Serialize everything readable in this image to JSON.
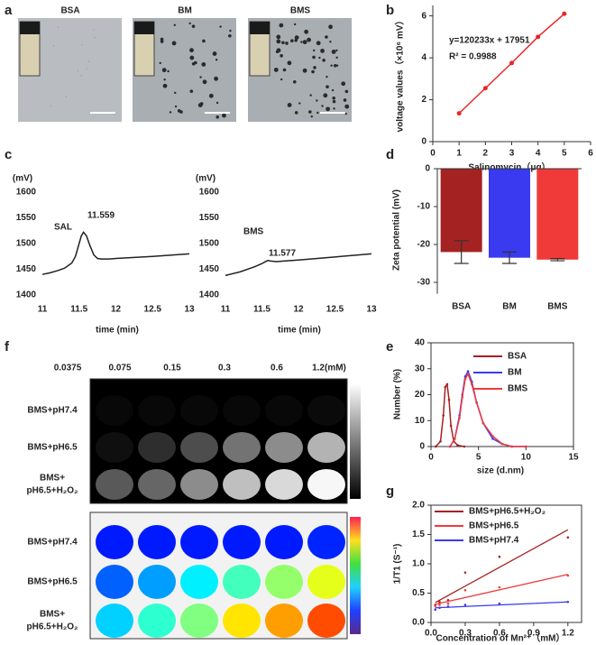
{
  "chart_data": [
    {
      "type": "images",
      "panel": "a",
      "labels": [
        "BSA",
        "BM",
        "BMS"
      ]
    },
    {
      "type": "line",
      "panel": "b",
      "annotations": [
        "y=120233x + 17951",
        "R² = 0.9988"
      ],
      "x_label": "Salinomycin（μg）",
      "y_label": "voltage values（×10⁶ mV）",
      "xlim": [
        0,
        6
      ],
      "xticks": [
        0,
        1,
        2,
        3,
        4,
        5,
        6
      ],
      "ylim": [
        0,
        6.5
      ],
      "yticks": [
        0,
        2,
        4,
        6
      ],
      "series": [
        {
          "color": "#e8262a",
          "x": [
            1,
            2,
            3,
            4,
            5
          ],
          "values": [
            1.35,
            2.55,
            3.75,
            5.0,
            6.1
          ]
        }
      ]
    },
    {
      "type": "line",
      "panel": "c",
      "unit_label": "(mV)",
      "annotations": [
        "SAL",
        "11.559"
      ],
      "x_label": "time (min)",
      "xlim": [
        11,
        13
      ],
      "xticks": [
        11,
        11.5,
        12,
        12.5,
        13
      ],
      "ylim": [
        1400,
        1600
      ],
      "yticks": [
        1400,
        1450,
        1500,
        1550,
        1600
      ],
      "series": [
        {
          "color": "#222222",
          "x": [
            11,
            11.1,
            11.2,
            11.3,
            11.4,
            11.45,
            11.5,
            11.53,
            11.56,
            11.6,
            11.65,
            11.7,
            11.75,
            11.8,
            11.9,
            12,
            12.5,
            13
          ],
          "values": [
            1440,
            1443,
            1447,
            1452,
            1462,
            1475,
            1500,
            1515,
            1522,
            1515,
            1495,
            1478,
            1471,
            1470,
            1470,
            1471,
            1475,
            1480
          ]
        }
      ]
    },
    {
      "type": "line",
      "unit_label": "(mV)",
      "annotations": [
        "BMS",
        "11.577"
      ],
      "x_label": "time (min)",
      "xlim": [
        11,
        13
      ],
      "xticks": [
        11,
        11.5,
        12,
        12.5,
        13
      ],
      "ylim": [
        1400,
        1600
      ],
      "yticks": [
        1400,
        1450,
        1500,
        1550,
        1600
      ],
      "series": [
        {
          "color": "#222222",
          "x": [
            11,
            11.2,
            11.4,
            11.5,
            11.55,
            11.58,
            11.62,
            11.7,
            11.8,
            12,
            12.5,
            13
          ],
          "values": [
            1438,
            1445,
            1455,
            1461,
            1465,
            1467,
            1466,
            1465,
            1466,
            1468,
            1474,
            1480
          ]
        }
      ]
    },
    {
      "type": "bar",
      "panel": "d",
      "y_label": "Zeta potential (mV)",
      "categories": [
        "BSA",
        "BM",
        "BMS"
      ],
      "values": [
        -22,
        -23.5,
        -24
      ],
      "errors": [
        3,
        1.5,
        0.3
      ],
      "colors": [
        "#a52222",
        "#3a3af0",
        "#f03a3a"
      ],
      "ylim": [
        -33,
        0
      ],
      "yticks": [
        0,
        -10,
        -20,
        -30
      ]
    },
    {
      "type": "line",
      "panel": "e",
      "x_label": "size (d.nm)",
      "y_label": "Number (%)",
      "legend": "upper right",
      "xlim": [
        0,
        15
      ],
      "xticks": [
        0,
        5,
        10,
        15
      ],
      "ylim": [
        0,
        40
      ],
      "yticks": [
        0,
        10,
        20,
        30,
        40
      ],
      "series": [
        {
          "name": "BSA",
          "color": "#a52222",
          "x": [
            0.5,
            1,
            1.3,
            1.5,
            1.7,
            1.9,
            2.1,
            2.4,
            2.8,
            3.5
          ],
          "values": [
            0,
            2,
            12,
            23,
            24,
            18,
            8,
            2,
            0.5,
            0
          ]
        },
        {
          "name": "BM",
          "color": "#3a3af0",
          "x": [
            2,
            2.5,
            3,
            3.3,
            3.6,
            3.9,
            4.3,
            4.8,
            5.5,
            6.5,
            7.5,
            8.5,
            10
          ],
          "values": [
            0,
            3,
            12,
            20,
            27,
            29,
            25,
            17,
            9,
            3,
            1,
            0,
            0
          ]
        },
        {
          "name": "BMS",
          "color": "#f03a3a",
          "x": [
            2,
            2.5,
            3,
            3.3,
            3.6,
            3.9,
            4.3,
            4.8,
            5.5,
            6.5,
            7.5,
            8.5,
            10
          ],
          "values": [
            0,
            3,
            11,
            19,
            26,
            28,
            24,
            17,
            9,
            4,
            1,
            0,
            0
          ]
        }
      ]
    },
    {
      "type": "heatmap",
      "panel": "f",
      "colormap": "gray",
      "columns": [
        "0.0375",
        "0.075",
        "0.15",
        "0.3",
        "0.6",
        "1.2(mM)"
      ],
      "row_labels": [
        [
          "BMS+pH7.4"
        ],
        [
          "BMS+pH6.5"
        ],
        [
          "BMS+",
          "pH6.5+H₂O₂"
        ]
      ],
      "values": [
        [
          0.03,
          0.03,
          0.03,
          0.03,
          0.03,
          0.04
        ],
        [
          0.06,
          0.18,
          0.3,
          0.45,
          0.55,
          0.7
        ],
        [
          0.35,
          0.4,
          0.55,
          0.75,
          0.85,
          0.97
        ]
      ]
    },
    {
      "type": "heatmap",
      "colormap": "jet",
      "row_labels": [
        [
          "BMS+pH7.4"
        ],
        [
          "BMS+pH6.5"
        ],
        [
          "BMS+",
          "pH6.5+H₂O₂"
        ]
      ],
      "values": [
        [
          0.15,
          0.15,
          0.15,
          0.15,
          0.15,
          0.16
        ],
        [
          0.22,
          0.28,
          0.36,
          0.44,
          0.52,
          0.6
        ],
        [
          0.33,
          0.42,
          0.5,
          0.65,
          0.72,
          0.8
        ]
      ]
    },
    {
      "type": "scatter",
      "panel": "g",
      "x_label": "Concentration of Mn²⁺（mM）",
      "y_label": "1/T1 (S⁻¹)",
      "legend": "upper left",
      "xlim": [
        0,
        1.32
      ],
      "xticks": [
        {
          "value": 0,
          "label": "0.0"
        },
        {
          "value": 0.3,
          "label": "0.3"
        },
        {
          "value": 0.6,
          "label": "0.6"
        },
        {
          "value": 0.9,
          "label": "0.9"
        },
        {
          "value": 1.2,
          "label": "1.2"
        }
      ],
      "ylim": [
        0,
        2
      ],
      "yticks": [
        {
          "value": 0,
          "label": "0.0"
        },
        {
          "value": 0.5,
          "label": "0.5"
        },
        {
          "value": 1,
          "label": "1.0"
        },
        {
          "value": 1.5,
          "label": "1.5"
        },
        {
          "value": 2,
          "label": "2.0"
        }
      ],
      "series": [
        {
          "name": "BMS+pH6.5+H₂O₂",
          "color": "#a52222",
          "x": [
            0.0375,
            0.075,
            0.15,
            0.3,
            0.6,
            1.2
          ],
          "values": [
            0.3,
            0.35,
            0.38,
            0.85,
            1.12,
            1.45
          ],
          "fit_x": [
            0.0375,
            1.2
          ],
          "fit_values": [
            0.34,
            1.58
          ]
        },
        {
          "name": "BMS+pH6.5",
          "color": "#f03a3a",
          "x": [
            0.0375,
            0.075,
            0.15,
            0.3,
            0.6,
            1.2
          ],
          "values": [
            0.28,
            0.3,
            0.32,
            0.55,
            0.6,
            0.8
          ],
          "fit_x": [
            0.0375,
            1.2
          ],
          "fit_values": [
            0.31,
            0.82
          ]
        },
        {
          "name": "BMS+pH7.4",
          "color": "#3a3af0",
          "x": [
            0.0375,
            0.075,
            0.15,
            0.3,
            0.6,
            1.2
          ],
          "values": [
            0.22,
            0.25,
            0.27,
            0.3,
            0.32,
            0.35
          ],
          "fit_x": [
            0.0375,
            1.2
          ],
          "fit_values": [
            0.25,
            0.35
          ]
        }
      ]
    }
  ]
}
